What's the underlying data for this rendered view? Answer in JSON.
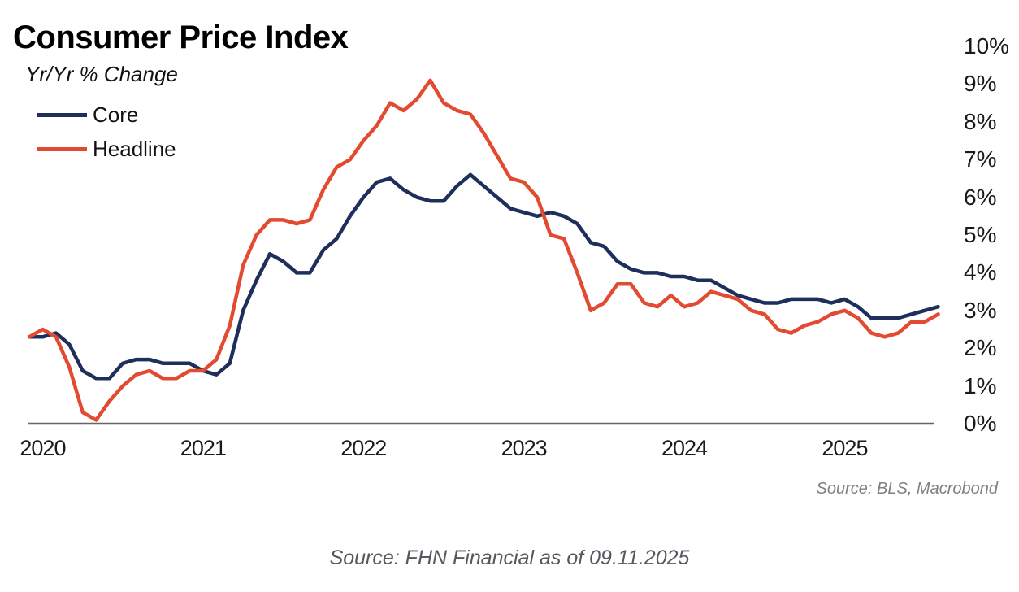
{
  "chart_data": {
    "type": "line",
    "title": "Consumer Price Index",
    "subtitle": "Yr/Yr % Change",
    "source_note": "Source: BLS, Macrobond",
    "caption": "Source: FHN Financial as of 09.11.2025",
    "grid": false,
    "legend_position": "top-left",
    "y_axis_side": "right",
    "ylim": [
      0,
      10
    ],
    "axis_color": "#666666",
    "x": [
      "2019-12",
      "2020-01",
      "2020-02",
      "2020-03",
      "2020-04",
      "2020-05",
      "2020-06",
      "2020-07",
      "2020-08",
      "2020-09",
      "2020-10",
      "2020-11",
      "2020-12",
      "2021-01",
      "2021-02",
      "2021-03",
      "2021-04",
      "2021-05",
      "2021-06",
      "2021-07",
      "2021-08",
      "2021-09",
      "2021-10",
      "2021-11",
      "2021-12",
      "2022-01",
      "2022-02",
      "2022-03",
      "2022-04",
      "2022-05",
      "2022-06",
      "2022-07",
      "2022-08",
      "2022-09",
      "2022-10",
      "2022-11",
      "2022-12",
      "2023-01",
      "2023-02",
      "2023-03",
      "2023-04",
      "2023-05",
      "2023-06",
      "2023-07",
      "2023-08",
      "2023-09",
      "2023-10",
      "2023-11",
      "2023-12",
      "2024-01",
      "2024-02",
      "2024-03",
      "2024-04",
      "2024-05",
      "2024-06",
      "2024-07",
      "2024-08",
      "2024-09",
      "2024-10",
      "2024-11",
      "2024-12",
      "2025-01",
      "2025-02",
      "2025-03",
      "2025-04",
      "2025-05",
      "2025-06",
      "2025-07",
      "2025-08"
    ],
    "series": [
      {
        "name": "Core",
        "color": "#1e2f5c",
        "values": [
          2.3,
          2.3,
          2.4,
          2.1,
          1.4,
          1.2,
          1.2,
          1.6,
          1.7,
          1.7,
          1.6,
          1.6,
          1.6,
          1.4,
          1.3,
          1.6,
          3.0,
          3.8,
          4.5,
          4.3,
          4.0,
          4.0,
          4.6,
          4.9,
          5.5,
          6.0,
          6.4,
          6.5,
          6.2,
          6.0,
          5.9,
          5.9,
          6.3,
          6.6,
          6.3,
          6.0,
          5.7,
          5.6,
          5.5,
          5.6,
          5.5,
          5.3,
          4.8,
          4.7,
          4.3,
          4.1,
          4.0,
          4.0,
          3.9,
          3.9,
          3.8,
          3.8,
          3.6,
          3.4,
          3.3,
          3.2,
          3.2,
          3.3,
          3.3,
          3.3,
          3.2,
          3.3,
          3.1,
          2.8,
          2.8,
          2.8,
          2.9,
          3.0,
          3.1
        ]
      },
      {
        "name": "Headline",
        "color": "#e24a31",
        "values": [
          2.3,
          2.5,
          2.3,
          1.5,
          0.3,
          0.1,
          0.6,
          1.0,
          1.3,
          1.4,
          1.2,
          1.2,
          1.4,
          1.4,
          1.7,
          2.6,
          4.2,
          5.0,
          5.4,
          5.4,
          5.3,
          5.4,
          6.2,
          6.8,
          7.0,
          7.5,
          7.9,
          8.5,
          8.3,
          8.6,
          9.1,
          8.5,
          8.3,
          8.2,
          7.7,
          7.1,
          6.5,
          6.4,
          6.0,
          5.0,
          4.9,
          4.0,
          3.0,
          3.2,
          3.7,
          3.7,
          3.2,
          3.1,
          3.4,
          3.1,
          3.2,
          3.5,
          3.4,
          3.3,
          3.0,
          2.9,
          2.5,
          2.4,
          2.6,
          2.7,
          2.9,
          3.0,
          2.8,
          2.4,
          2.3,
          2.4,
          2.7,
          2.7,
          2.9
        ]
      }
    ],
    "x_ticks": [
      {
        "label": "2020",
        "index": 1
      },
      {
        "label": "2021",
        "index": 13
      },
      {
        "label": "2022",
        "index": 25
      },
      {
        "label": "2023",
        "index": 37
      },
      {
        "label": "2024",
        "index": 49
      },
      {
        "label": "2025",
        "index": 61
      }
    ],
    "y_ticks": [
      {
        "label": "0%",
        "value": 0
      },
      {
        "label": "1%",
        "value": 1
      },
      {
        "label": "2%",
        "value": 2
      },
      {
        "label": "3%",
        "value": 3
      },
      {
        "label": "4%",
        "value": 4
      },
      {
        "label": "5%",
        "value": 5
      },
      {
        "label": "6%",
        "value": 6
      },
      {
        "label": "7%",
        "value": 7
      },
      {
        "label": "8%",
        "value": 8
      },
      {
        "label": "9%",
        "value": 9
      },
      {
        "label": "10%",
        "value": 10
      }
    ]
  }
}
